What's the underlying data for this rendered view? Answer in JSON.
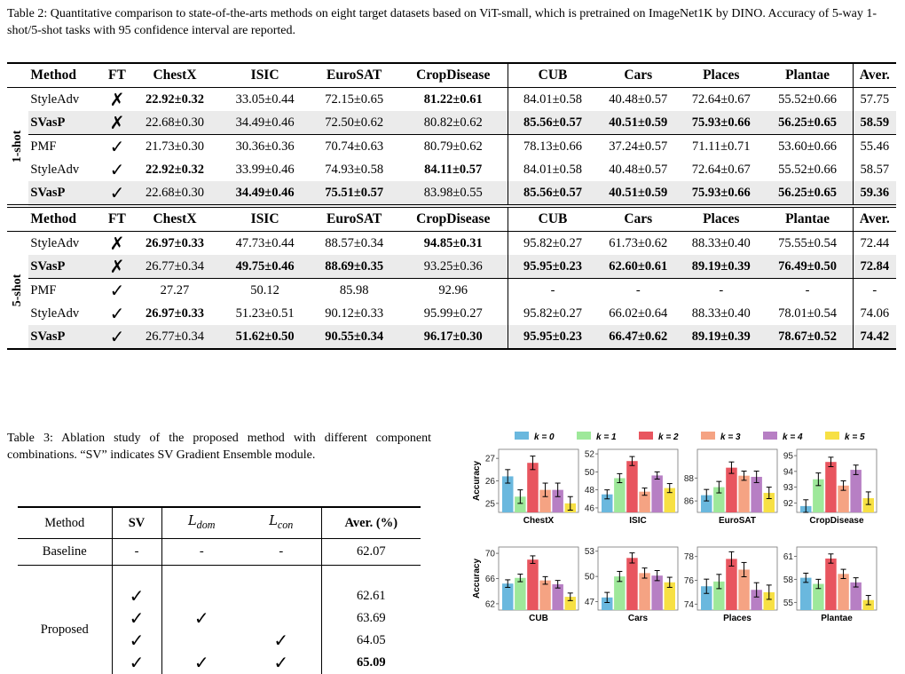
{
  "table2": {
    "caption": "Table 2: Quantitative comparison to state-of-the-arts methods on eight target datasets based on ViT-small, which is pretrained on ImageNet1K by DINO. Accuracy of 5-way 1-shot/5-shot tasks with 95 confidence interval are reported.",
    "headers": [
      "Method",
      "FT",
      "ChestX",
      "ISIC",
      "EuroSAT",
      "CropDisease",
      "CUB",
      "Cars",
      "Places",
      "Plantae",
      "Aver."
    ],
    "group_1shot": "1-shot",
    "group_5shot": "5-shot",
    "rows_1shot_a": [
      {
        "method": "StyleAdv",
        "ft": "✗",
        "cells": [
          "22.92±0.32",
          "33.05±0.44",
          "72.15±0.65",
          "81.22±0.61",
          "84.01±0.58",
          "40.48±0.57",
          "72.64±0.67",
          "55.52±0.66",
          "57.75"
        ]
      },
      {
        "method": "SVasP",
        "ft": "✗",
        "cells": [
          "22.68±0.30",
          "34.49±0.46",
          "72.50±0.62",
          "80.82±0.62",
          "85.56±0.57",
          "40.51±0.59",
          "75.93±0.66",
          "56.25±0.65",
          "58.59"
        ]
      }
    ],
    "rows_1shot_b": [
      {
        "method": "PMF",
        "ft": "✓",
        "cells": [
          "21.73±0.30",
          "30.36±0.36",
          "70.74±0.63",
          "80.79±0.62",
          "78.13±0.66",
          "37.24±0.57",
          "71.11±0.71",
          "53.60±0.66",
          "55.46"
        ]
      },
      {
        "method": "StyleAdv",
        "ft": "✓",
        "cells": [
          "22.92±0.32",
          "33.99±0.46",
          "74.93±0.58",
          "84.11±0.57",
          "84.01±0.58",
          "40.48±0.57",
          "72.64±0.67",
          "55.52±0.66",
          "58.57"
        ]
      },
      {
        "method": "SVasP",
        "ft": "✓",
        "cells": [
          "22.68±0.30",
          "34.49±0.46",
          "75.51±0.57",
          "83.98±0.55",
          "85.56±0.57",
          "40.51±0.59",
          "75.93±0.66",
          "56.25±0.65",
          "59.36"
        ]
      }
    ],
    "rows_5shot_a": [
      {
        "method": "StyleAdv",
        "ft": "✗",
        "cells": [
          "26.97±0.33",
          "47.73±0.44",
          "88.57±0.34",
          "94.85±0.31",
          "95.82±0.27",
          "61.73±0.62",
          "88.33±0.40",
          "75.55±0.54",
          "72.44"
        ]
      },
      {
        "method": "SVasP",
        "ft": "✗",
        "cells": [
          "26.77±0.34",
          "49.75±0.46",
          "88.69±0.35",
          "93.25±0.36",
          "95.95±0.23",
          "62.60±0.61",
          "89.19±0.39",
          "76.49±0.50",
          "72.84"
        ]
      }
    ],
    "rows_5shot_b": [
      {
        "method": "PMF",
        "ft": "✓",
        "cells": [
          "27.27",
          "50.12",
          "85.98",
          "92.96",
          "-",
          "-",
          "-",
          "-",
          "-"
        ]
      },
      {
        "method": "StyleAdv",
        "ft": "✓",
        "cells": [
          "26.97±0.33",
          "51.23±0.51",
          "90.12±0.33",
          "95.99±0.27",
          "95.82±0.27",
          "66.02±0.64",
          "88.33±0.40",
          "78.01±0.54",
          "74.06"
        ]
      },
      {
        "method": "SVasP",
        "ft": "✓",
        "cells": [
          "26.77±0.34",
          "51.62±0.50",
          "90.55±0.34",
          "96.17±0.30",
          "95.95±0.23",
          "66.47±0.62",
          "89.19±0.39",
          "78.67±0.52",
          "74.42"
        ]
      }
    ]
  },
  "table3": {
    "caption": "Table 3: Ablation study of the proposed method with different component combinations. “SV” indicates SV Gradient Ensemble module.",
    "headers": [
      "Method",
      "SV",
      "Aver. (%)"
    ],
    "dom_label": "dom",
    "con_label": "con",
    "script_L": "L",
    "baseline": {
      "method": "Baseline",
      "sv": "-",
      "dom": "-",
      "con": "-",
      "aver": "62.07"
    },
    "proposed_label": "Proposed",
    "proposed": [
      {
        "sv": "✓",
        "dom": "",
        "con": "",
        "aver": "62.61"
      },
      {
        "sv": "✓",
        "dom": "✓",
        "con": "",
        "aver": "63.69"
      },
      {
        "sv": "✓",
        "dom": "",
        "con": "✓",
        "aver": "64.05"
      },
      {
        "sv": "✓",
        "dom": "✓",
        "con": "✓",
        "aver": "65.09"
      }
    ]
  },
  "chart_data": {
    "type": "bar",
    "ylabel": "Accuracy",
    "legend_position": "top",
    "series": [
      {
        "name": "k = 0",
        "color": "#6ab8de"
      },
      {
        "name": "k = 1",
        "color": "#9ee89a"
      },
      {
        "name": "k = 2",
        "color": "#e8555f"
      },
      {
        "name": "k = 3",
        "color": "#f5a383"
      },
      {
        "name": "k = 4",
        "color": "#b77fc4"
      },
      {
        "name": "k = 5",
        "color": "#f7e044"
      }
    ],
    "panels": [
      {
        "title": "ChestX",
        "ylim": [
          24.6,
          27.4
        ],
        "yticks": [
          25,
          26,
          27
        ],
        "values": [
          26.2,
          25.3,
          26.8,
          25.6,
          25.6,
          25.0
        ],
        "err": [
          0.3,
          0.3,
          0.3,
          0.3,
          0.3,
          0.3
        ]
      },
      {
        "title": "ISIC",
        "ylim": [
          45.5,
          52.5
        ],
        "yticks": [
          46,
          48,
          50,
          52
        ],
        "values": [
          47.5,
          49.3,
          51.2,
          47.8,
          49.6,
          48.2
        ],
        "err": [
          0.5,
          0.5,
          0.5,
          0.4,
          0.4,
          0.5
        ]
      },
      {
        "title": "EuroSAT",
        "ylim": [
          85.0,
          90.5
        ],
        "yticks": [
          86,
          88
        ],
        "values": [
          86.5,
          87.2,
          88.9,
          88.2,
          88.1,
          86.7
        ],
        "err": [
          0.5,
          0.5,
          0.5,
          0.4,
          0.5,
          0.5
        ]
      },
      {
        "title": "CropDisease",
        "ylim": [
          91.4,
          95.4
        ],
        "yticks": [
          92,
          93,
          94,
          95
        ],
        "values": [
          91.8,
          93.5,
          94.6,
          93.1,
          94.1,
          92.3
        ],
        "err": [
          0.4,
          0.4,
          0.3,
          0.3,
          0.3,
          0.4
        ]
      },
      {
        "title": "CUB",
        "ylim": [
          61.0,
          71.0
        ],
        "yticks": [
          62,
          66,
          70
        ],
        "values": [
          65.2,
          66.1,
          69.0,
          65.7,
          65.1,
          63.1
        ],
        "err": [
          0.6,
          0.6,
          0.6,
          0.6,
          0.6,
          0.6
        ]
      },
      {
        "title": "Cars",
        "ylim": [
          46.0,
          53.5
        ],
        "yticks": [
          47,
          50,
          53
        ],
        "values": [
          47.5,
          50.0,
          52.2,
          50.4,
          50.1,
          49.3
        ],
        "err": [
          0.6,
          0.6,
          0.6,
          0.6,
          0.6,
          0.6
        ]
      },
      {
        "title": "Places",
        "ylim": [
          73.5,
          78.8
        ],
        "yticks": [
          74,
          76,
          78
        ],
        "values": [
          75.5,
          75.9,
          77.8,
          76.9,
          75.2,
          75.0
        ],
        "err": [
          0.6,
          0.6,
          0.6,
          0.6,
          0.6,
          0.6
        ]
      },
      {
        "title": "Plantae",
        "ylim": [
          54.0,
          62.2
        ],
        "yticks": [
          55,
          58,
          61
        ],
        "values": [
          58.2,
          57.4,
          60.7,
          58.7,
          57.6,
          55.3
        ],
        "err": [
          0.6,
          0.6,
          0.6,
          0.6,
          0.6,
          0.6
        ]
      }
    ]
  }
}
